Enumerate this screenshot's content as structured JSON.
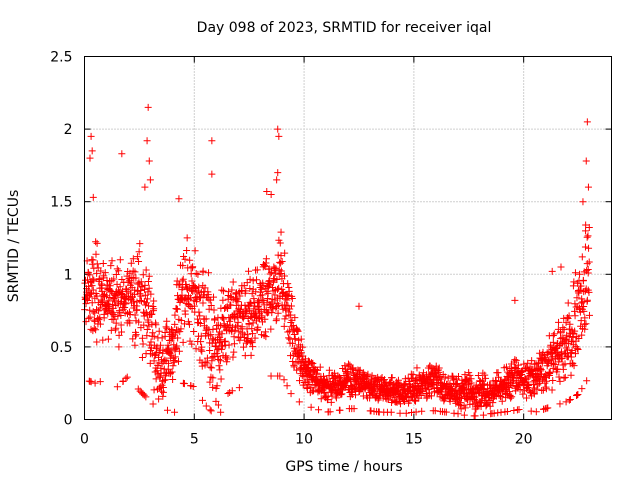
{
  "chart_data": {
    "type": "scatter",
    "title": "Day 098 of 2023, SRMTID for receiver iqal",
    "xlabel": "GPS time / hours",
    "ylabel": "SRMTID / TECUs",
    "xlim": [
      0,
      24
    ],
    "ylim": [
      0,
      2.5
    ],
    "xticks": [
      "0",
      "5",
      "10",
      "15",
      "20"
    ],
    "xtick_values": [
      0,
      5,
      10,
      15,
      20
    ],
    "yticks": [
      "0",
      "0.5",
      "1",
      "1.5",
      "2",
      "2.5"
    ],
    "ytick_values": [
      0,
      0.5,
      1,
      1.5,
      2,
      2.5
    ],
    "grid": true,
    "marker": "plus",
    "color": "#ff0000",
    "envelope": [
      [
        0.0,
        0.55,
        1.15
      ],
      [
        0.5,
        0.5,
        1.25
      ],
      [
        1.0,
        0.55,
        1.1
      ],
      [
        1.5,
        0.45,
        1.15
      ],
      [
        2.0,
        0.6,
        1.1
      ],
      [
        2.5,
        0.4,
        1.25
      ],
      [
        3.0,
        0.25,
        1.05
      ],
      [
        3.5,
        0.1,
        0.6
      ],
      [
        4.0,
        0.15,
        0.8
      ],
      [
        4.5,
        0.5,
        1.3
      ],
      [
        5.0,
        0.45,
        1.2
      ],
      [
        5.5,
        0.2,
        1.2
      ],
      [
        6.0,
        0.05,
        0.9
      ],
      [
        6.5,
        0.35,
        1.0
      ],
      [
        7.0,
        0.45,
        1.0
      ],
      [
        7.5,
        0.35,
        1.05
      ],
      [
        8.0,
        0.45,
        1.1
      ],
      [
        8.5,
        0.6,
        1.2
      ],
      [
        9.0,
        0.6,
        1.4
      ],
      [
        9.5,
        0.3,
        0.9
      ],
      [
        10.0,
        0.2,
        0.45
      ],
      [
        10.5,
        0.15,
        0.4
      ],
      [
        11.0,
        0.1,
        0.35
      ],
      [
        11.5,
        0.12,
        0.35
      ],
      [
        12.0,
        0.15,
        0.4
      ],
      [
        12.5,
        0.15,
        0.38
      ],
      [
        13.0,
        0.12,
        0.35
      ],
      [
        13.5,
        0.1,
        0.3
      ],
      [
        14.0,
        0.1,
        0.3
      ],
      [
        14.5,
        0.08,
        0.28
      ],
      [
        15.0,
        0.1,
        0.35
      ],
      [
        15.5,
        0.12,
        0.38
      ],
      [
        16.0,
        0.12,
        0.4
      ],
      [
        16.5,
        0.1,
        0.35
      ],
      [
        17.0,
        0.08,
        0.3
      ],
      [
        17.5,
        0.05,
        0.35
      ],
      [
        18.0,
        0.05,
        0.35
      ],
      [
        18.5,
        0.08,
        0.3
      ],
      [
        19.0,
        0.1,
        0.35
      ],
      [
        19.5,
        0.12,
        0.45
      ],
      [
        20.0,
        0.15,
        0.4
      ],
      [
        20.5,
        0.1,
        0.45
      ],
      [
        21.0,
        0.15,
        0.55
      ],
      [
        21.5,
        0.2,
        0.7
      ],
      [
        22.0,
        0.25,
        0.8
      ],
      [
        22.5,
        0.35,
        1.2
      ],
      [
        23.0,
        0.6,
        1.5
      ]
    ],
    "outliers": [
      [
        0.3,
        1.95
      ],
      [
        0.25,
        1.8
      ],
      [
        0.35,
        1.85
      ],
      [
        0.4,
        1.53
      ],
      [
        1.7,
        1.83
      ],
      [
        2.9,
        2.15
      ],
      [
        2.85,
        1.92
      ],
      [
        2.95,
        1.78
      ],
      [
        3.0,
        1.65
      ],
      [
        2.75,
        1.6
      ],
      [
        5.8,
        1.92
      ],
      [
        5.8,
        1.69
      ],
      [
        4.3,
        1.52
      ],
      [
        8.8,
        2.0
      ],
      [
        8.85,
        1.95
      ],
      [
        8.8,
        1.7
      ],
      [
        8.75,
        1.65
      ],
      [
        8.3,
        1.57
      ],
      [
        8.5,
        1.55
      ],
      [
        12.5,
        0.78
      ],
      [
        19.6,
        0.82
      ],
      [
        21.3,
        1.02
      ],
      [
        21.7,
        1.05
      ],
      [
        22.9,
        2.05
      ],
      [
        22.85,
        1.78
      ],
      [
        22.95,
        1.6
      ],
      [
        22.7,
        1.5
      ],
      [
        4.1,
        0.05
      ],
      [
        17.3,
        0.03
      ],
      [
        6.2,
        0.05
      ],
      [
        6.1,
        0.1
      ]
    ]
  }
}
